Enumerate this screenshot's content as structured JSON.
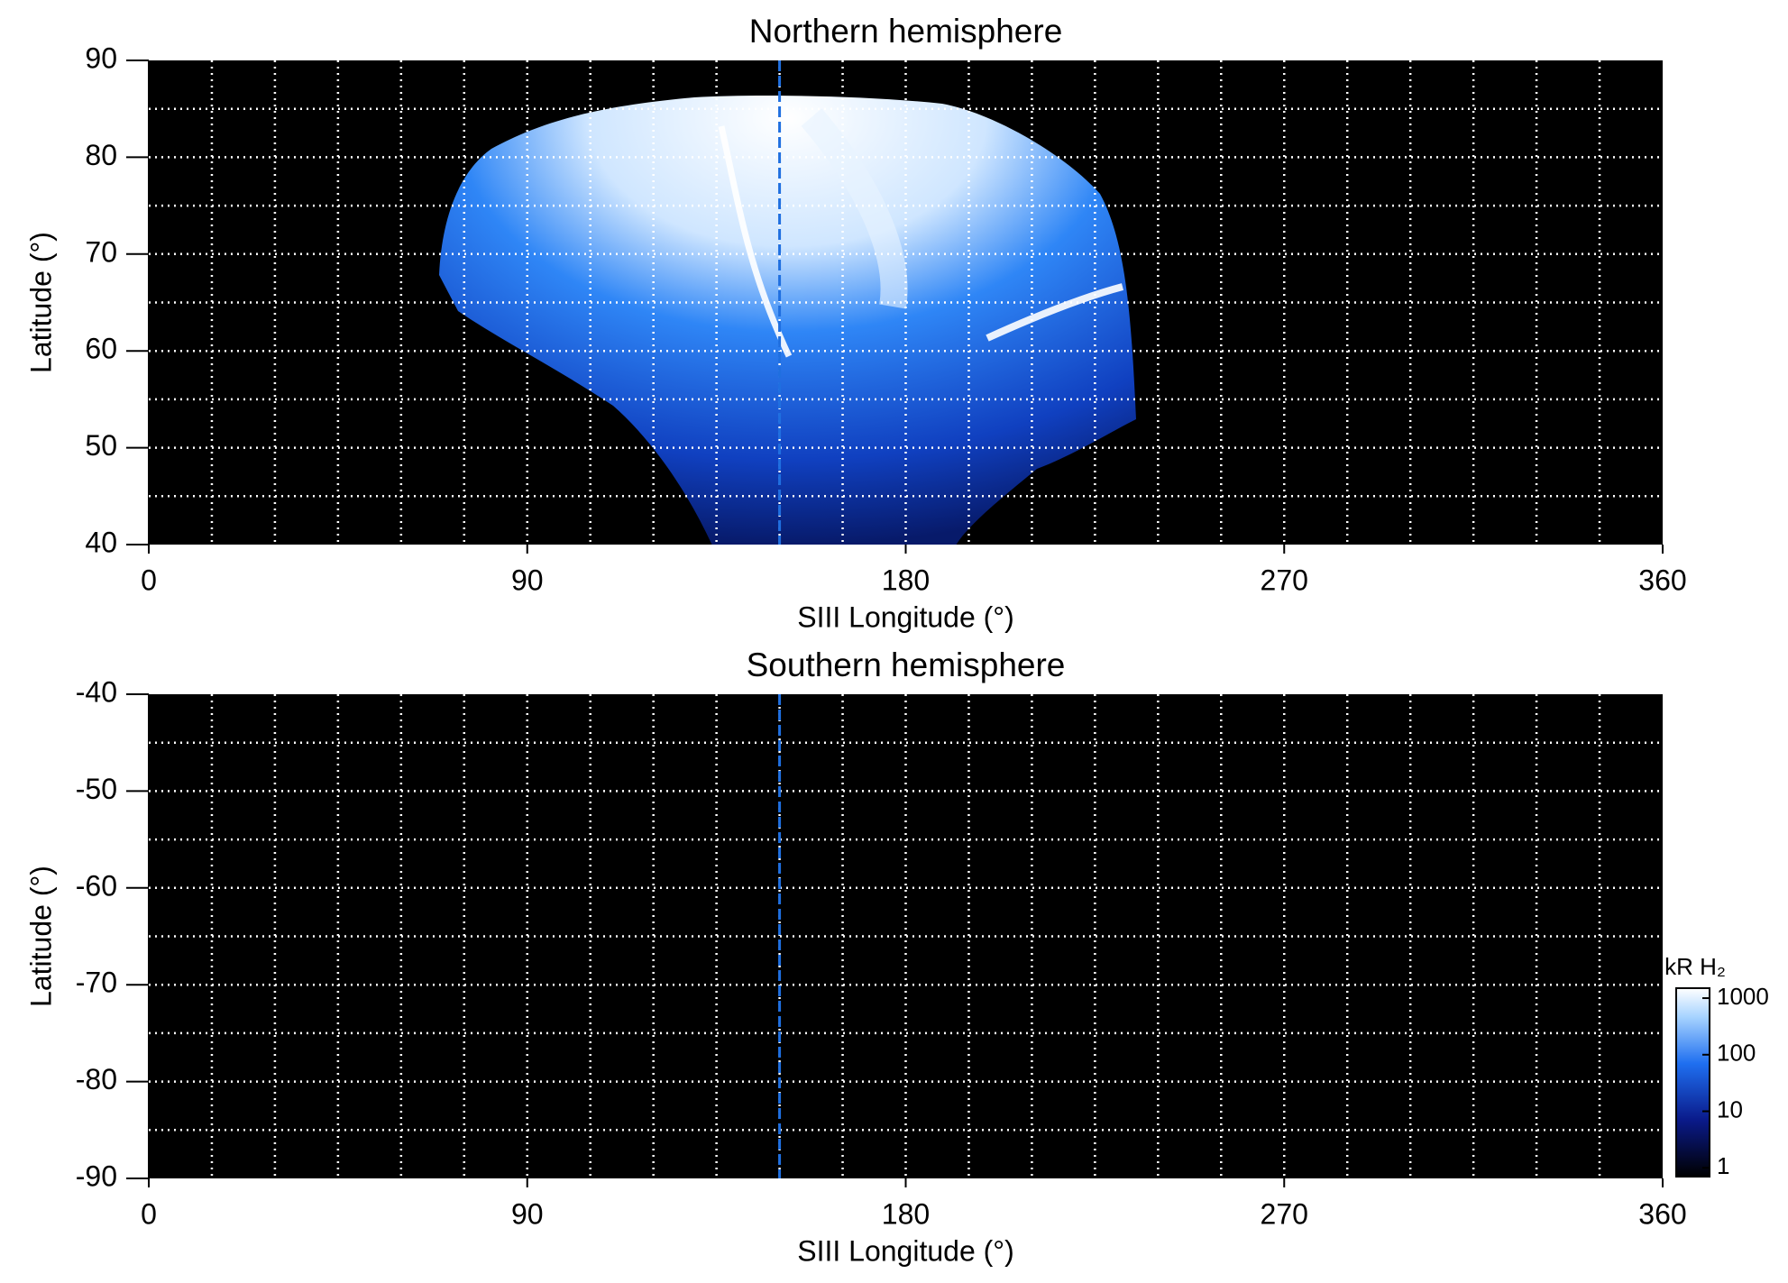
{
  "chart_data": [
    {
      "type": "heatmap",
      "title": "Northern hemisphere",
      "xlabel": "SIII Longitude (°)",
      "ylabel": "Latitude (°)",
      "xlim": [
        0,
        360
      ],
      "ylim": [
        40,
        90
      ],
      "xticks": [
        0,
        90,
        180,
        270,
        360
      ],
      "yticks": [
        40,
        50,
        60,
        70,
        80,
        90
      ],
      "grid": true,
      "xgrid": [
        15,
        30,
        45,
        60,
        75,
        90,
        105,
        120,
        135,
        150,
        165,
        180,
        195,
        210,
        225,
        240,
        255,
        270,
        285,
        300,
        315,
        330,
        345
      ],
      "ygrid": [
        45,
        50,
        55,
        60,
        65,
        70,
        75,
        80,
        85
      ],
      "background": "#000000",
      "vline": {
        "x": 150,
        "color": "#1f6fe0"
      }
    },
    {
      "type": "heatmap",
      "title": "Southern hemisphere",
      "xlabel": "SIII Longitude (°)",
      "ylabel": "Latitude (°)",
      "xlim": [
        0,
        360
      ],
      "ylim": [
        -90,
        -40
      ],
      "xticks": [
        0,
        90,
        180,
        270,
        360
      ],
      "yticks": [
        -40,
        -50,
        -60,
        -70,
        -80,
        -90
      ],
      "grid": true,
      "xgrid": [
        15,
        30,
        45,
        60,
        75,
        90,
        105,
        120,
        135,
        150,
        165,
        180,
        195,
        210,
        225,
        240,
        255,
        270,
        285,
        300,
        315,
        330,
        345
      ],
      "ygrid": [
        -85,
        -80,
        -75,
        -70,
        -65,
        -60,
        -55,
        -50,
        -45
      ],
      "background": "#000000",
      "vline": {
        "x": 150,
        "color": "#1f6fe0"
      },
      "colorbar": {
        "label": "kR H₂",
        "log": true,
        "lim": [
          0.7,
          1500
        ],
        "ticks": [
          1,
          10,
          100,
          1000
        ]
      }
    }
  ]
}
